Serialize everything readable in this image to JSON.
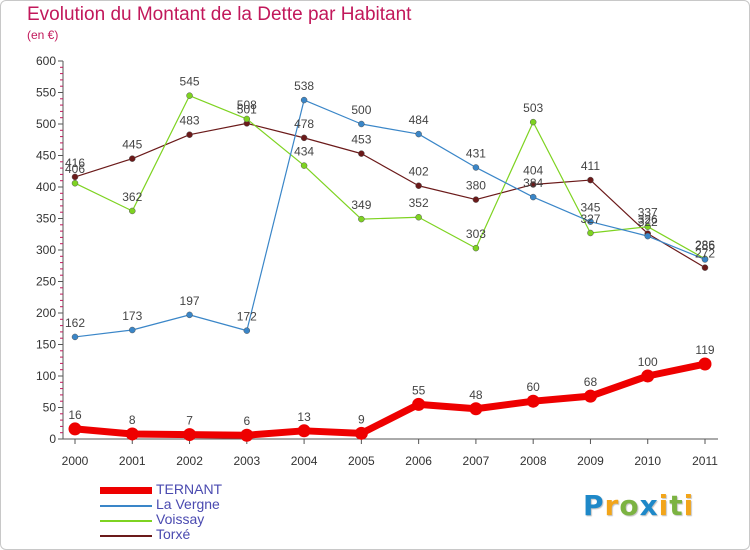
{
  "title": "Evolution du Montant de la Dette par Habitant",
  "subtitle": "(en €)",
  "logo": {
    "text": "Proxiti",
    "letters": [
      {
        "ch": "P",
        "color": "#1e88c8"
      },
      {
        "ch": "r",
        "color": "#f2a51a"
      },
      {
        "ch": "o",
        "color": "#7cb342"
      },
      {
        "ch": "x",
        "color": "#1e88c8"
      },
      {
        "ch": "i",
        "color": "#f2a51a"
      },
      {
        "ch": "t",
        "color": "#7cb342"
      },
      {
        "ch": "i",
        "color": "#f2a51a"
      }
    ]
  },
  "chart_data": {
    "type": "line",
    "title": "Evolution du Montant de la Dette par Habitant",
    "subtitle": "(en €)",
    "x": [
      "2000",
      "2001",
      "2002",
      "2003",
      "2004",
      "2005",
      "2006",
      "2007",
      "2008",
      "2009",
      "2010",
      "2011"
    ],
    "ylim": [
      0,
      600
    ],
    "yticks": [
      0,
      50,
      100,
      150,
      200,
      250,
      300,
      350,
      400,
      450,
      500,
      550,
      600
    ],
    "grid": false,
    "legend": "bottom-left",
    "series": [
      {
        "name": "TERNANT",
        "color": "#ee0000",
        "values": [
          16,
          8,
          7,
          6,
          13,
          9,
          55,
          48,
          60,
          68,
          100,
          119
        ]
      },
      {
        "name": "La Vergne",
        "color": "#3a86c8",
        "values": [
          162,
          173,
          197,
          172,
          538,
          500,
          484,
          431,
          384,
          345,
          322,
          285
        ]
      },
      {
        "name": "Voissay",
        "color": "#7ed321",
        "values": [
          406,
          362,
          545,
          508,
          434,
          349,
          352,
          303,
          503,
          327,
          337,
          286
        ]
      },
      {
        "name": "Torxé",
        "color": "#6b1a1a",
        "values": [
          416,
          445,
          483,
          501,
          478,
          453,
          402,
          380,
          404,
          411,
          326,
          272
        ]
      }
    ]
  }
}
